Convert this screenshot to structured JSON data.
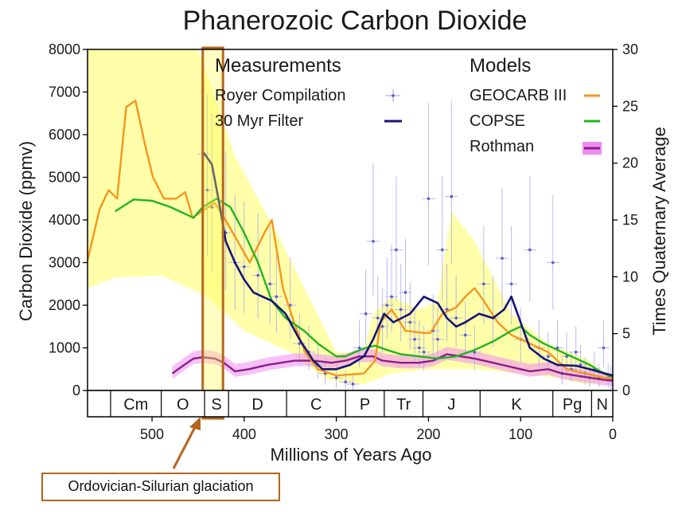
{
  "colors": {
    "geocarb": "#f5961e",
    "copse": "#22b422",
    "rothman": "#8c1e8c",
    "rothman_band": "#f08cf0",
    "filter": "#14147a",
    "royer": "#5a5ad2",
    "uncertainty": "#ffff9a",
    "highlight": "#b5651d"
  },
  "chart_data": {
    "type": "line",
    "title": "Phanerozoic Carbon Dioxide",
    "xlabel": "Millions of Years Ago",
    "ylabel": "Carbon Dioxide (ppmv)",
    "y2label": "Times Quaternary Average",
    "xlim": [
      570,
      0
    ],
    "ylim": [
      0,
      8000
    ],
    "y2lim": [
      0,
      30
    ],
    "xticks": [
      "500",
      "400",
      "300",
      "200",
      "100",
      "0"
    ],
    "xtick_values": [
      500,
      400,
      300,
      200,
      100,
      0
    ],
    "yticks": [
      "0",
      "1000",
      "2000",
      "3000",
      "4000",
      "5000",
      "6000",
      "7000",
      "8000"
    ],
    "ytick_values": [
      0,
      1000,
      2000,
      3000,
      4000,
      5000,
      6000,
      7000,
      8000
    ],
    "y2ticks": [
      "0",
      "5",
      "10",
      "15",
      "20",
      "25",
      "30"
    ],
    "y2tick_values": [
      0,
      5,
      10,
      15,
      20,
      25,
      30
    ],
    "legend": {
      "measurements_title": "Measurements",
      "models_title": "Models",
      "royer": "Royer Compilation",
      "filter": "30 Myr Filter",
      "geocarb": "GEOCARB III",
      "copse": "COPSE",
      "rothman": "Rothman"
    },
    "periods": [
      {
        "label": "",
        "start": 570,
        "end": 545
      },
      {
        "label": "Cm",
        "start": 545,
        "end": 490
      },
      {
        "label": "O",
        "start": 490,
        "end": 443
      },
      {
        "label": "S",
        "start": 443,
        "end": 417
      },
      {
        "label": "D",
        "start": 417,
        "end": 354
      },
      {
        "label": "C",
        "start": 354,
        "end": 290
      },
      {
        "label": "P",
        "start": 290,
        "end": 248
      },
      {
        "label": "Tr",
        "start": 248,
        "end": 206
      },
      {
        "label": "J",
        "start": 206,
        "end": 144
      },
      {
        "label": "K",
        "start": 144,
        "end": 65
      },
      {
        "label": "Pg",
        "start": 65,
        "end": 23
      },
      {
        "label": "N",
        "start": 23,
        "end": 0
      }
    ],
    "uncertainty_band": {
      "upper": [
        [
          570,
          8000
        ],
        [
          450,
          8000
        ],
        [
          410,
          5500
        ],
        [
          360,
          3500
        ],
        [
          300,
          900
        ],
        [
          270,
          900
        ],
        [
          260,
          1800
        ],
        [
          240,
          2200
        ],
        [
          210,
          1900
        ],
        [
          190,
          2100
        ],
        [
          175,
          4200
        ],
        [
          150,
          3500
        ],
        [
          110,
          1800
        ],
        [
          70,
          1100
        ],
        [
          30,
          750
        ],
        [
          0,
          300
        ]
      ],
      "lower": [
        [
          570,
          2400
        ],
        [
          540,
          2650
        ],
        [
          490,
          2700
        ],
        [
          440,
          2200
        ],
        [
          400,
          1400
        ],
        [
          350,
          900
        ],
        [
          310,
          250
        ],
        [
          270,
          150
        ],
        [
          240,
          400
        ],
        [
          200,
          500
        ],
        [
          150,
          500
        ],
        [
          100,
          400
        ],
        [
          60,
          300
        ],
        [
          30,
          150
        ],
        [
          0,
          200
        ]
      ]
    },
    "series": [
      {
        "name": "GEOCARB III",
        "values": [
          [
            570,
            3050
          ],
          [
            557,
            4250
          ],
          [
            547,
            4700
          ],
          [
            538,
            4500
          ],
          [
            528,
            6650
          ],
          [
            518,
            6800
          ],
          [
            508,
            5800
          ],
          [
            499,
            5000
          ],
          [
            487,
            4500
          ],
          [
            474,
            4500
          ],
          [
            464,
            4650
          ],
          [
            456,
            4050
          ],
          [
            446,
            4200
          ],
          [
            432,
            4400
          ],
          [
            423,
            4100
          ],
          [
            407,
            3500
          ],
          [
            394,
            3000
          ],
          [
            378,
            3700
          ],
          [
            370,
            4000
          ],
          [
            358,
            2400
          ],
          [
            346,
            1600
          ],
          [
            334,
            900
          ],
          [
            320,
            500
          ],
          [
            300,
            350
          ],
          [
            270,
            400
          ],
          [
            258,
            700
          ],
          [
            252,
            1600
          ],
          [
            240,
            1900
          ],
          [
            225,
            1400
          ],
          [
            205,
            1350
          ],
          [
            198,
            1350
          ],
          [
            185,
            1800
          ],
          [
            170,
            1950
          ],
          [
            160,
            2200
          ],
          [
            150,
            2400
          ],
          [
            140,
            2100
          ],
          [
            125,
            1600
          ],
          [
            110,
            1300
          ],
          [
            90,
            1100
          ],
          [
            70,
            900
          ],
          [
            50,
            500
          ],
          [
            30,
            400
          ],
          [
            10,
            300
          ],
          [
            0,
            280
          ]
        ]
      },
      {
        "name": "COPSE",
        "values": [
          [
            540,
            4200
          ],
          [
            520,
            4480
          ],
          [
            500,
            4450
          ],
          [
            480,
            4300
          ],
          [
            455,
            4050
          ],
          [
            445,
            4300
          ],
          [
            430,
            4500
          ],
          [
            415,
            4300
          ],
          [
            400,
            3700
          ],
          [
            385,
            3000
          ],
          [
            370,
            2100
          ],
          [
            355,
            1700
          ],
          [
            335,
            1400
          ],
          [
            320,
            1100
          ],
          [
            300,
            800
          ],
          [
            290,
            800
          ],
          [
            280,
            900
          ],
          [
            268,
            1000
          ],
          [
            258,
            1050
          ],
          [
            245,
            950
          ],
          [
            230,
            850
          ],
          [
            210,
            800
          ],
          [
            190,
            750
          ],
          [
            170,
            800
          ],
          [
            150,
            950
          ],
          [
            130,
            1150
          ],
          [
            110,
            1400
          ],
          [
            100,
            1500
          ],
          [
            90,
            1300
          ],
          [
            75,
            1100
          ],
          [
            60,
            950
          ],
          [
            45,
            800
          ],
          [
            25,
            600
          ],
          [
            10,
            400
          ],
          [
            0,
            320
          ]
        ]
      },
      {
        "name": "Rothman",
        "values": [
          [
            478,
            400
          ],
          [
            465,
            600
          ],
          [
            455,
            750
          ],
          [
            445,
            780
          ],
          [
            432,
            750
          ],
          [
            422,
            650
          ],
          [
            410,
            450
          ],
          [
            395,
            500
          ],
          [
            375,
            600
          ],
          [
            360,
            650
          ],
          [
            345,
            700
          ],
          [
            325,
            700
          ],
          [
            305,
            650
          ],
          [
            290,
            700
          ],
          [
            275,
            800
          ],
          [
            260,
            800
          ],
          [
            250,
            700
          ],
          [
            230,
            650
          ],
          [
            210,
            650
          ],
          [
            195,
            700
          ],
          [
            180,
            850
          ],
          [
            165,
            800
          ],
          [
            150,
            750
          ],
          [
            130,
            650
          ],
          [
            110,
            550
          ],
          [
            90,
            450
          ],
          [
            70,
            500
          ],
          [
            55,
            400
          ],
          [
            40,
            350
          ],
          [
            25,
            300
          ],
          [
            10,
            250
          ],
          [
            0,
            230
          ]
        ]
      },
      {
        "name": "30 Myr Filter",
        "values": [
          [
            444,
            5580
          ],
          [
            435,
            5300
          ],
          [
            428,
            4500
          ],
          [
            420,
            3500
          ],
          [
            410,
            3000
          ],
          [
            400,
            2600
          ],
          [
            390,
            2300
          ],
          [
            380,
            2200
          ],
          [
            370,
            2100
          ],
          [
            355,
            1800
          ],
          [
            340,
            1200
          ],
          [
            325,
            700
          ],
          [
            315,
            500
          ],
          [
            300,
            500
          ],
          [
            285,
            600
          ],
          [
            270,
            800
          ],
          [
            260,
            1200
          ],
          [
            248,
            1800
          ],
          [
            238,
            1600
          ],
          [
            220,
            1800
          ],
          [
            205,
            2200
          ],
          [
            190,
            2050
          ],
          [
            180,
            1700
          ],
          [
            170,
            1500
          ],
          [
            160,
            1600
          ],
          [
            145,
            1800
          ],
          [
            130,
            1700
          ],
          [
            118,
            1900
          ],
          [
            110,
            2200
          ],
          [
            100,
            1600
          ],
          [
            90,
            1000
          ],
          [
            75,
            750
          ],
          [
            60,
            600
          ],
          [
            40,
            580
          ],
          [
            25,
            500
          ],
          [
            12,
            420
          ],
          [
            0,
            350
          ]
        ]
      }
    ],
    "royer_points": [
      [
        444,
        5550
      ],
      [
        440,
        4700
      ],
      [
        435,
        4300
      ],
      [
        420,
        3700
      ],
      [
        410,
        3000
      ],
      [
        400,
        2900
      ],
      [
        385,
        2700
      ],
      [
        372,
        2500
      ],
      [
        365,
        2200
      ],
      [
        350,
        2000
      ],
      [
        340,
        1100
      ],
      [
        330,
        900
      ],
      [
        320,
        600
      ],
      [
        312,
        400
      ],
      [
        300,
        300
      ],
      [
        290,
        200
      ],
      [
        282,
        150
      ],
      [
        275,
        1000
      ],
      [
        268,
        1800
      ],
      [
        260,
        3500
      ],
      [
        255,
        1700
      ],
      [
        250,
        1500
      ],
      [
        245,
        2000
      ],
      [
        240,
        2200
      ],
      [
        235,
        3300
      ],
      [
        230,
        1900
      ],
      [
        225,
        2300
      ],
      [
        220,
        1600
      ],
      [
        215,
        1200
      ],
      [
        210,
        1000
      ],
      [
        205,
        900
      ],
      [
        200,
        4500
      ],
      [
        195,
        1400
      ],
      [
        190,
        1200
      ],
      [
        185,
        3300
      ],
      [
        180,
        1900
      ],
      [
        175,
        4550
      ],
      [
        170,
        1700
      ],
      [
        160,
        1300
      ],
      [
        150,
        900
      ],
      [
        140,
        2500
      ],
      [
        130,
        1700
      ],
      [
        120,
        3100
      ],
      [
        110,
        2500
      ],
      [
        100,
        1200
      ],
      [
        90,
        3300
      ],
      [
        80,
        1000
      ],
      [
        70,
        800
      ],
      [
        65,
        3000
      ],
      [
        60,
        1000
      ],
      [
        55,
        400
      ],
      [
        50,
        800
      ],
      [
        45,
        500
      ],
      [
        40,
        900
      ],
      [
        35,
        600
      ],
      [
        30,
        400
      ],
      [
        25,
        300
      ],
      [
        20,
        500
      ],
      [
        15,
        300
      ],
      [
        10,
        1000
      ],
      [
        5,
        300
      ],
      [
        2,
        250
      ]
    ],
    "highlight_range": [
      445,
      423
    ]
  },
  "callout": {
    "text": "Ordovician-Silurian glaciation"
  }
}
